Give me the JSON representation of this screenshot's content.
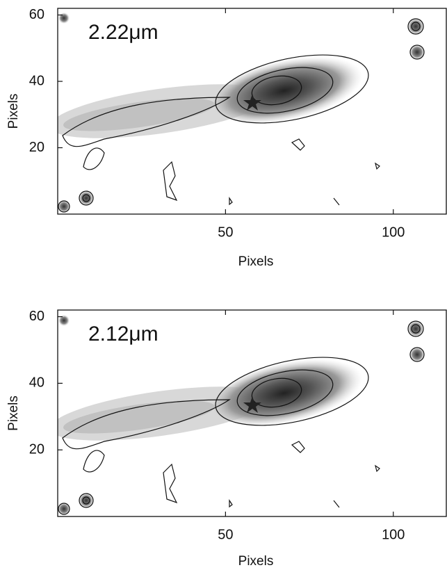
{
  "chart_data": [
    {
      "type": "contour",
      "title": "2.22μm",
      "xlabel": "Pixels",
      "ylabel": "Pixels",
      "xlim": [
        0,
        116
      ],
      "ylim": [
        0,
        62
      ],
      "xticks": [
        50,
        100
      ],
      "yticks": [
        20,
        40,
        60
      ]
    },
    {
      "type": "contour",
      "title": "2.12μm",
      "xlabel": "Pixels",
      "ylabel": "Pixels",
      "xlim": [
        0,
        116
      ],
      "ylim": [
        0,
        62
      ],
      "xticks": [
        50,
        100
      ],
      "yticks": [
        20,
        40,
        60
      ]
    }
  ]
}
